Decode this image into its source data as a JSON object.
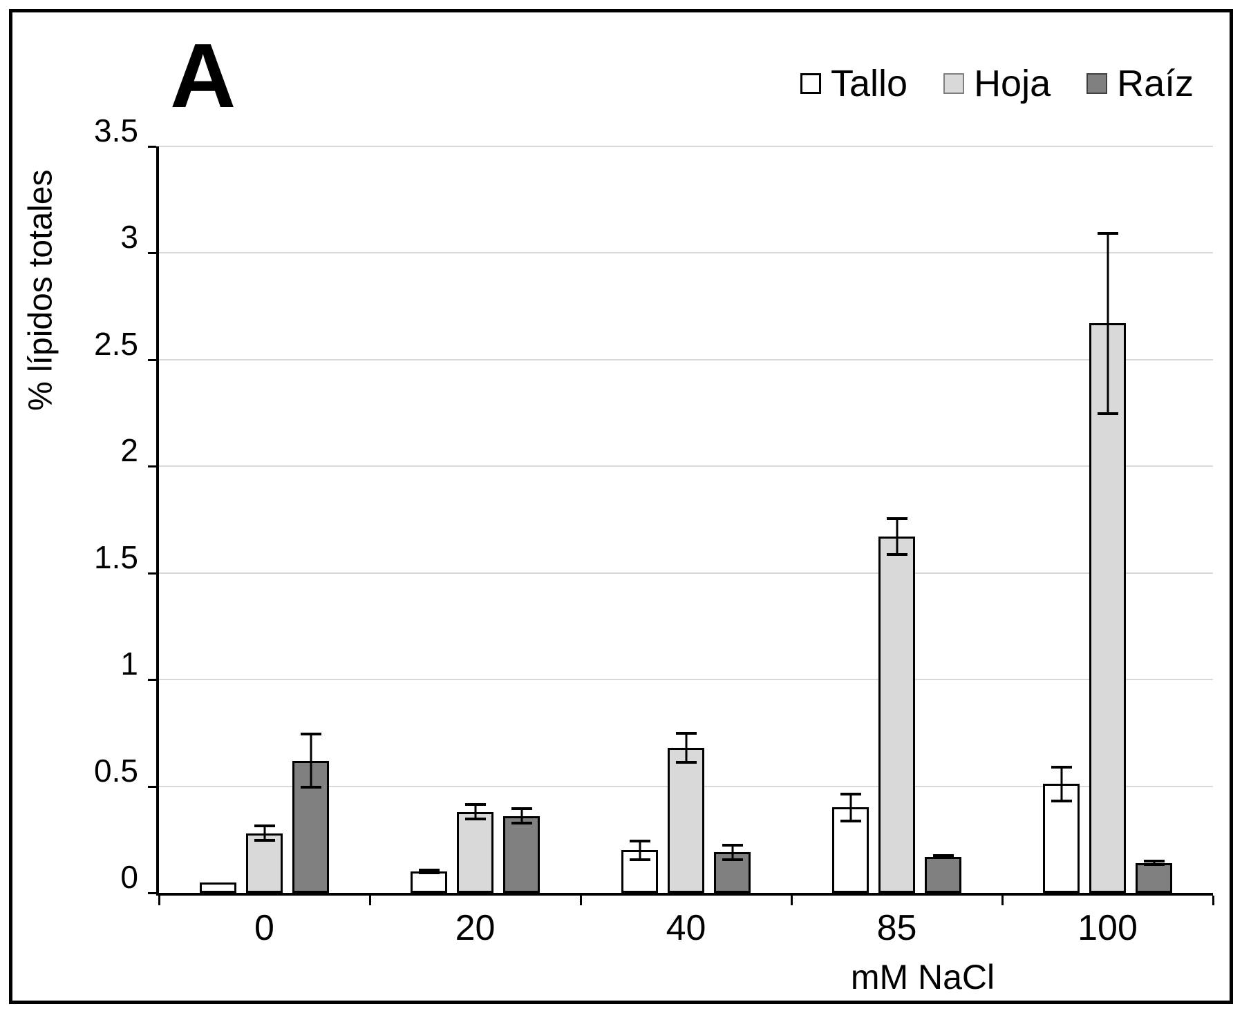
{
  "figure": {
    "panel_label": "A",
    "background": "#ffffff",
    "border_color": "#000000"
  },
  "chart_data": {
    "type": "bar",
    "title": "A",
    "categories": [
      "0",
      "20",
      "40",
      "85",
      "100"
    ],
    "series": [
      {
        "name": "Tallo",
        "color": "#ffffff",
        "border_color": "#000000",
        "values": [
          0.05,
          0.1,
          0.2,
          0.4,
          0.51
        ],
        "errors": [
          0,
          0.012,
          0.05,
          0.07,
          0.085
        ]
      },
      {
        "name": "Hoja",
        "color": "#d9d9d9",
        "border_color": "#000000",
        "values": [
          0.28,
          0.38,
          0.68,
          1.67,
          2.67
        ],
        "errors": [
          0.04,
          0.04,
          0.075,
          0.09,
          0.43
        ]
      },
      {
        "name": "Raíz",
        "color": "#808080",
        "border_color": "#000000",
        "values": [
          0.62,
          0.36,
          0.19,
          0.17,
          0.14
        ],
        "errors": [
          0.13,
          0.04,
          0.04,
          0.012,
          0.015
        ]
      }
    ],
    "xlabel": "mM NaCl",
    "ylabel": "% lípidos totales",
    "ylim": [
      0,
      3.5
    ],
    "yticks": [
      0,
      0.5,
      1,
      1.5,
      2,
      2.5,
      3,
      3.5
    ],
    "grid": true,
    "gridline_color": "#d9d9d9",
    "error_bar_color": "#000000",
    "legend_position": "top-right",
    "legend_swatch_borders": [
      "#000000",
      "#7f7f7f",
      "#404040"
    ]
  }
}
